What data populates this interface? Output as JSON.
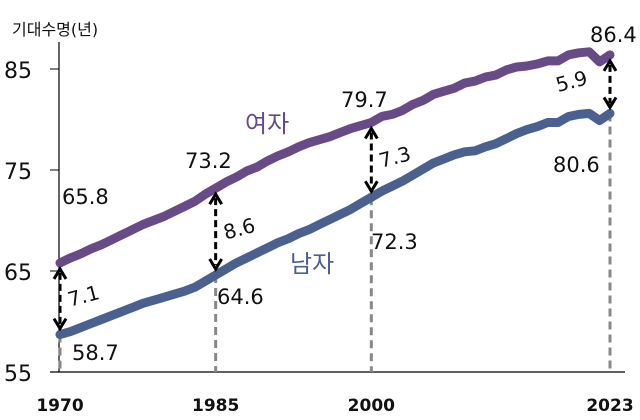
{
  "chart_data": {
    "type": "line",
    "ylabel": "기대수명(년)",
    "xlabel": "",
    "ylim": [
      55,
      88
    ],
    "xlim": [
      1970,
      2023
    ],
    "yticks": [
      55,
      65,
      75,
      85
    ],
    "xticks": [
      1970,
      1985,
      2000,
      2023
    ],
    "grid": false,
    "x": [
      1970,
      1971,
      1972,
      1973,
      1974,
      1975,
      1976,
      1977,
      1978,
      1979,
      1980,
      1981,
      1982,
      1983,
      1984,
      1985,
      1986,
      1987,
      1988,
      1989,
      1990,
      1991,
      1992,
      1993,
      1994,
      1995,
      1996,
      1997,
      1998,
      1999,
      2000,
      2001,
      2002,
      2003,
      2004,
      2005,
      2006,
      2007,
      2008,
      2009,
      2010,
      2011,
      2012,
      2013,
      2014,
      2015,
      2016,
      2017,
      2018,
      2019,
      2020,
      2021,
      2022,
      2023
    ],
    "series": [
      {
        "name": "여자",
        "color": "#674a86",
        "values": [
          65.8,
          66.3,
          66.7,
          67.2,
          67.6,
          68.1,
          68.6,
          69.1,
          69.6,
          70.0,
          70.4,
          70.9,
          71.4,
          71.9,
          72.6,
          73.2,
          73.8,
          74.3,
          74.9,
          75.3,
          75.9,
          76.4,
          76.8,
          77.3,
          77.7,
          78.0,
          78.3,
          78.7,
          79.1,
          79.4,
          79.7,
          80.3,
          80.5,
          80.9,
          81.5,
          81.9,
          82.5,
          82.8,
          83.1,
          83.6,
          83.8,
          84.2,
          84.4,
          84.9,
          85.2,
          85.3,
          85.5,
          85.8,
          85.8,
          86.4,
          86.6,
          86.7,
          85.7,
          86.4
        ]
      },
      {
        "name": "남자",
        "color": "#4a6190",
        "values": [
          58.7,
          59.0,
          59.4,
          59.8,
          60.2,
          60.6,
          61.0,
          61.4,
          61.8,
          62.1,
          62.4,
          62.7,
          63.0,
          63.4,
          64.0,
          64.6,
          65.2,
          65.8,
          66.3,
          66.8,
          67.3,
          67.8,
          68.2,
          68.7,
          69.1,
          69.6,
          70.1,
          70.6,
          71.1,
          71.7,
          72.3,
          72.9,
          73.4,
          73.9,
          74.5,
          75.1,
          75.7,
          76.1,
          76.5,
          76.8,
          76.9,
          77.3,
          77.6,
          78.1,
          78.6,
          79.0,
          79.3,
          79.7,
          79.7,
          80.3,
          80.5,
          80.6,
          79.9,
          80.6
        ]
      }
    ],
    "annotations": {
      "female_labels": [
        {
          "year": 1970,
          "text": "65.8"
        },
        {
          "year": 1985,
          "text": "73.2"
        },
        {
          "year": 2000,
          "text": "79.7"
        },
        {
          "year": 2023,
          "text": "86.4"
        }
      ],
      "male_labels": [
        {
          "year": 1970,
          "text": "58.7"
        },
        {
          "year": 1985,
          "text": "64.6"
        },
        {
          "year": 2000,
          "text": "72.3"
        },
        {
          "year": 2023,
          "text": "80.6"
        }
      ],
      "gaps": [
        {
          "year": 1970,
          "text": "7.1"
        },
        {
          "year": 1985,
          "text": "8.6"
        },
        {
          "year": 2000,
          "text": "7.3"
        },
        {
          "year": 2023,
          "text": "5.9"
        }
      ]
    },
    "legend": "inline"
  }
}
